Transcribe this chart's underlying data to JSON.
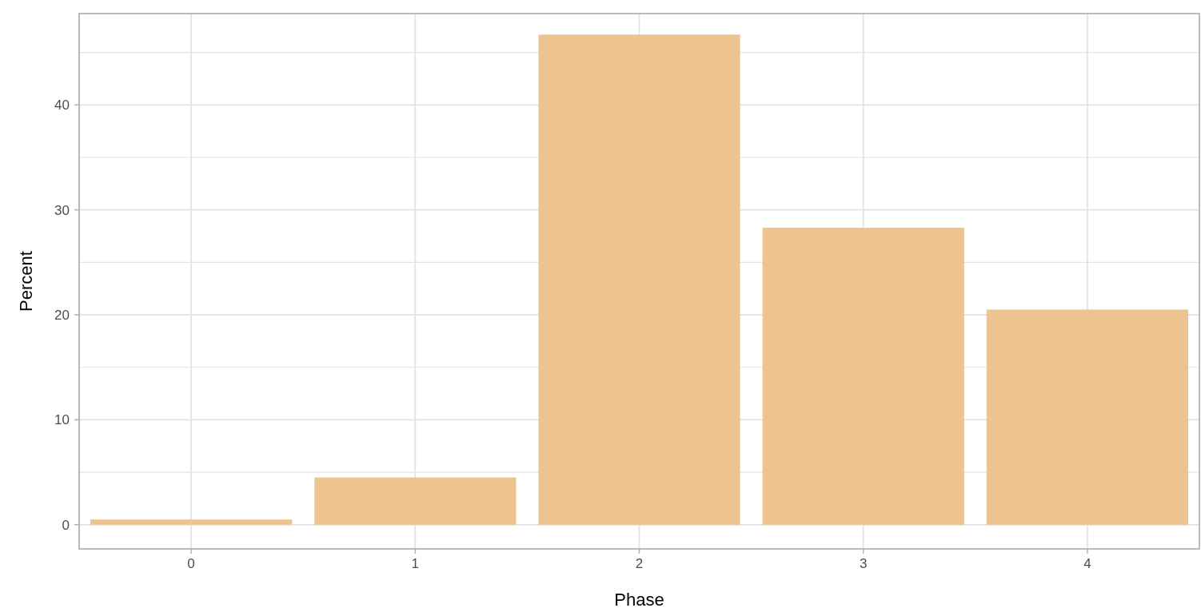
{
  "chart_data": {
    "type": "bar",
    "xlabel": "Phase",
    "ylabel": "Percent",
    "categories": [
      "0",
      "1",
      "2",
      "3",
      "4"
    ],
    "values": [
      0.5,
      4.5,
      46.7,
      28.3,
      20.5
    ],
    "color": "#edc48f",
    "ylim": [
      -2.3,
      48.7
    ],
    "yticks": [
      0,
      {
        "value": 5,
        "label": null
      },
      10,
      {
        "value": 15,
        "label": null
      },
      20,
      {
        "value": 25,
        "label": null
      },
      30,
      {
        "value": 35,
        "label": null
      },
      40,
      {
        "value": 45,
        "label": null
      }
    ],
    "grid": true
  }
}
